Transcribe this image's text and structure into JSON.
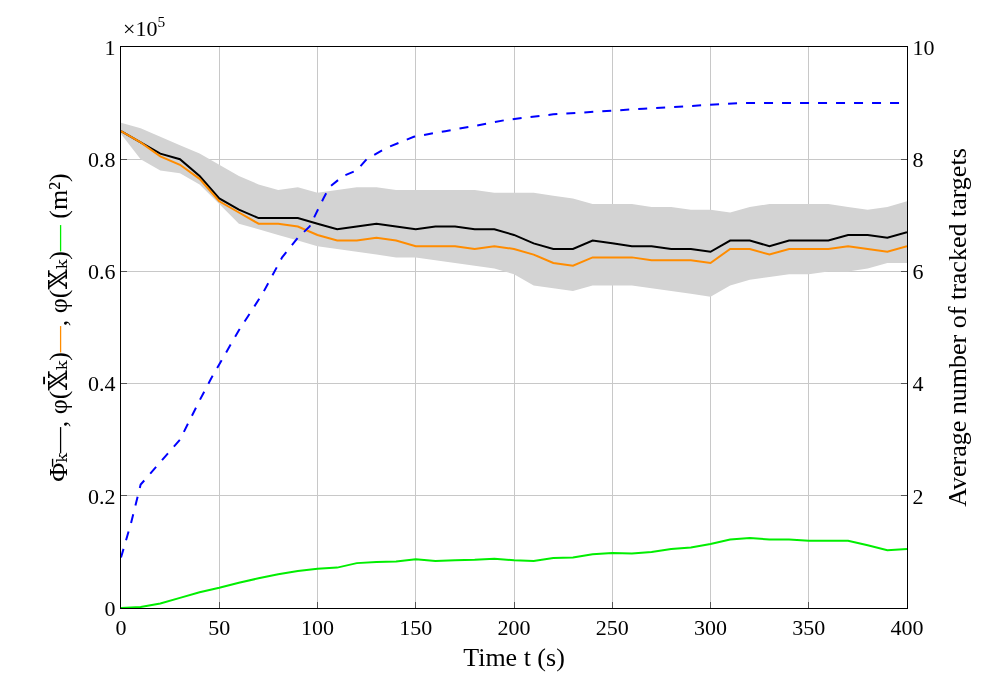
{
  "chart_data": {
    "type": "line",
    "xlabel": "Time t (s)",
    "ylabel": "Φ̄ₖ—, φ(𝕏̄ₖ)—, φ(𝕏ₖ)— (m²)",
    "y2label": "Average number of tracked targets",
    "annotations": [
      "×10$^{5}$"
    ],
    "x": [
      0,
      10,
      20,
      30,
      40,
      50,
      60,
      70,
      80,
      90,
      100,
      110,
      120,
      130,
      140,
      150,
      160,
      170,
      180,
      190,
      200,
      210,
      220,
      230,
      240,
      250,
      260,
      270,
      280,
      290,
      300,
      310,
      320,
      330,
      340,
      350,
      360,
      370,
      380,
      390,
      400
    ],
    "series": [
      {
        "color": "#000000",
        "values": [
          0.85,
          0.83,
          0.81,
          0.8,
          0.77,
          0.73,
          0.71,
          0.695,
          0.695,
          0.695,
          0.685,
          0.675,
          0.68,
          0.685,
          0.68,
          0.675,
          0.68,
          0.68,
          0.675,
          0.675,
          0.665,
          0.65,
          0.64,
          0.64,
          0.655,
          0.65,
          0.645,
          0.645,
          0.64,
          0.64,
          0.635,
          0.655,
          0.655,
          0.645,
          0.655,
          0.655,
          0.655,
          0.665,
          0.665,
          0.66,
          0.67
        ],
        "upper": [
          0.865,
          0.855,
          0.84,
          0.825,
          0.81,
          0.79,
          0.77,
          0.755,
          0.745,
          0.75,
          0.74,
          0.745,
          0.75,
          0.75,
          0.745,
          0.745,
          0.745,
          0.745,
          0.745,
          0.74,
          0.74,
          0.74,
          0.735,
          0.73,
          0.72,
          0.72,
          0.72,
          0.715,
          0.715,
          0.71,
          0.71,
          0.705,
          0.715,
          0.72,
          0.72,
          0.72,
          0.72,
          0.715,
          0.71,
          0.715,
          0.725
        ],
        "lower": [
          0.845,
          0.8,
          0.78,
          0.775,
          0.755,
          0.72,
          0.685,
          0.675,
          0.665,
          0.655,
          0.645,
          0.64,
          0.635,
          0.63,
          0.625,
          0.625,
          0.62,
          0.615,
          0.61,
          0.605,
          0.595,
          0.575,
          0.57,
          0.565,
          0.575,
          0.575,
          0.575,
          0.57,
          0.565,
          0.56,
          0.555,
          0.575,
          0.585,
          0.59,
          0.595,
          0.595,
          0.6,
          0.6,
          0.605,
          0.615,
          0.615
        ]
      },
      {
        "color": "#ff8c00",
        "values": [
          0.85,
          0.83,
          0.805,
          0.79,
          0.765,
          0.725,
          0.705,
          0.685,
          0.685,
          0.68,
          0.665,
          0.655,
          0.655,
          0.66,
          0.655,
          0.645,
          0.645,
          0.645,
          0.64,
          0.645,
          0.64,
          0.63,
          0.615,
          0.61,
          0.625,
          0.625,
          0.625,
          0.62,
          0.62,
          0.62,
          0.615,
          0.64,
          0.64,
          0.63,
          0.64,
          0.64,
          0.64,
          0.645,
          0.64,
          0.635,
          0.645
        ]
      },
      {
        "color": "#00ee00",
        "values": [
          0,
          0.002,
          0.008,
          0.018,
          0.028,
          0.036,
          0.045,
          0.053,
          0.06,
          0.066,
          0.07,
          0.072,
          0.08,
          0.082,
          0.083,
          0.087,
          0.084,
          0.085,
          0.086,
          0.088,
          0.085,
          0.084,
          0.089,
          0.09,
          0.096,
          0.098,
          0.097,
          0.1,
          0.105,
          0.108,
          0.114,
          0.122,
          0.125,
          0.122,
          0.122,
          0.12,
          0.12,
          0.12,
          0.112,
          0.103,
          0.105
        ]
      },
      {
        "color": "#0000ff",
        "axis": "y2",
        "line_style": "dashed",
        "x": [
          0,
          5,
          10,
          15,
          20,
          30,
          40,
          46,
          60,
          72,
          82,
          90,
          96,
          103,
          106,
          113,
          120,
          125,
          130,
          135,
          149,
          165,
          181,
          196,
          220,
          266,
          315,
          400
        ],
        "values": [
          0.9,
          1.5,
          2.2,
          2.4,
          2.6,
          3.0,
          3.7,
          4.1,
          4.95,
          5.6,
          6.25,
          6.6,
          6.8,
          7.3,
          7.5,
          7.7,
          7.8,
          8.0,
          8.1,
          8.2,
          8.4,
          8.5,
          8.6,
          8.7,
          8.8,
          8.9,
          9.0,
          9.0
        ]
      }
    ],
    "xlim": [
      0,
      400
    ],
    "xticks": [
      0,
      50,
      100,
      150,
      200,
      250,
      300,
      350,
      400
    ],
    "ylim": [
      0,
      1
    ],
    "yticks": [
      0,
      0.2,
      0.4,
      0.6,
      0.8,
      1
    ],
    "y2lim": [
      0,
      10
    ],
    "y2ticks": [
      2,
      4,
      6,
      8,
      10
    ],
    "grid": true,
    "line_style": "solid",
    "marker": "none"
  }
}
